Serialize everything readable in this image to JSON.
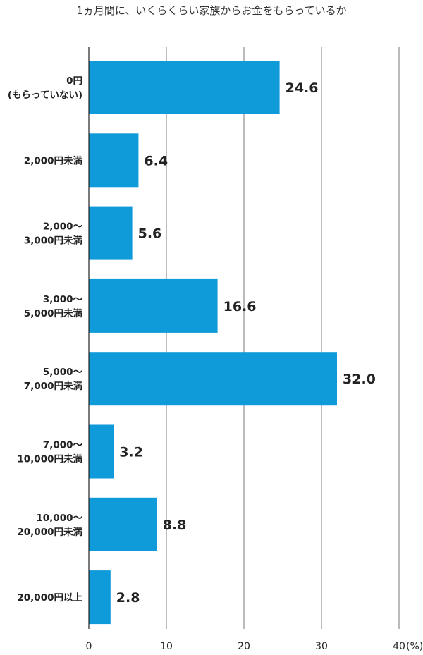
{
  "chart_data": {
    "type": "bar",
    "orientation": "horizontal",
    "title": "1ヵ月間に、いくらくらい家族からお金をもらっているか",
    "categories": [
      [
        "0円",
        "(もらっていない)"
      ],
      [
        "2,000円未満"
      ],
      [
        "2,000～",
        "3,000円未満"
      ],
      [
        "3,000～",
        "5,000円未満"
      ],
      [
        "5,000～",
        "7,000円未満"
      ],
      [
        "7,000～",
        "10,000円未満"
      ],
      [
        "10,000～",
        "20,000円未満"
      ],
      [
        "20,000円以上"
      ]
    ],
    "values": [
      24.6,
      6.4,
      5.6,
      16.6,
      32.0,
      3.2,
      8.8,
      2.8
    ],
    "value_labels": [
      "24.6",
      "6.4",
      "5.6",
      "16.6",
      "32.0",
      "3.2",
      "8.8",
      "2.8"
    ],
    "xlim": [
      0,
      40
    ],
    "ticks": [
      "0",
      "10",
      "20",
      "30",
      "40"
    ],
    "unit_label": "(%)",
    "grid": true,
    "bar_color": "#0f9ad9"
  }
}
